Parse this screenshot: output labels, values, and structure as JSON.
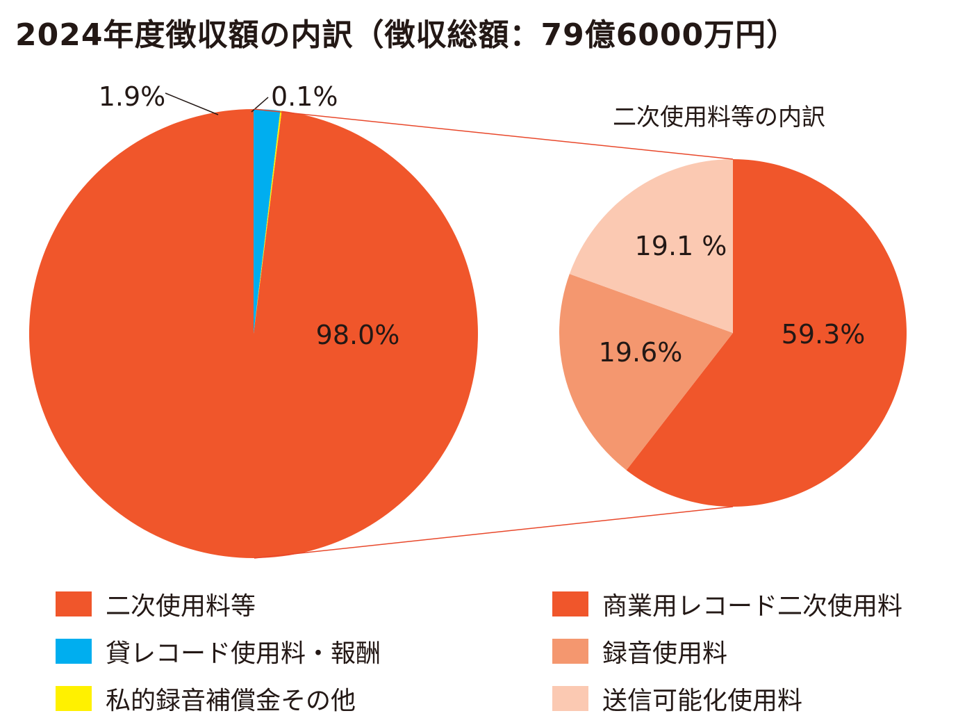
{
  "title": "2024年度徴収額の内訳（徴収総額：79億6000万円）",
  "chart_data": [
    {
      "type": "pie",
      "title": "",
      "slices": [
        {
          "label": "二次使用料等",
          "value": 98.0,
          "value_label": "98.0%",
          "color": "#F0562B"
        },
        {
          "label": "貸レコード使用料・報酬",
          "value": 1.9,
          "value_label": "1.9%",
          "color": "#00AEEF"
        },
        {
          "label": "私的録音補償金その他",
          "value": 0.1,
          "value_label": "0.1%",
          "color": "#FFF100"
        }
      ]
    },
    {
      "type": "pie",
      "title": "二次使用料等の内訳",
      "slices": [
        {
          "label": "商業用レコード二次使用料",
          "value": 59.3,
          "value_label": "59.3%",
          "color": "#F0562B"
        },
        {
          "label": "録音使用料",
          "value": 19.6,
          "value_label": "19.6%",
          "color": "#F4976F"
        },
        {
          "label": "送信可能化使用料",
          "value": 19.1,
          "value_label": "19.1 %",
          "color": "#FBC9B2"
        }
      ]
    }
  ],
  "legend": {
    "left": [
      {
        "label": "二次使用料等",
        "color": "#F0562B"
      },
      {
        "label": "貸レコード使用料・報酬",
        "color": "#00AEEF"
      },
      {
        "label": "私的録音補償金その他",
        "color": "#FFF100"
      }
    ],
    "right": [
      {
        "label": "商業用レコード二次使用料",
        "color": "#F0562B"
      },
      {
        "label": "録音使用料",
        "color": "#F4976F"
      },
      {
        "label": "送信可能化使用料",
        "color": "#FBC9B2"
      }
    ]
  },
  "colors": {
    "connector": "#E8472A",
    "leader": "#231815"
  }
}
